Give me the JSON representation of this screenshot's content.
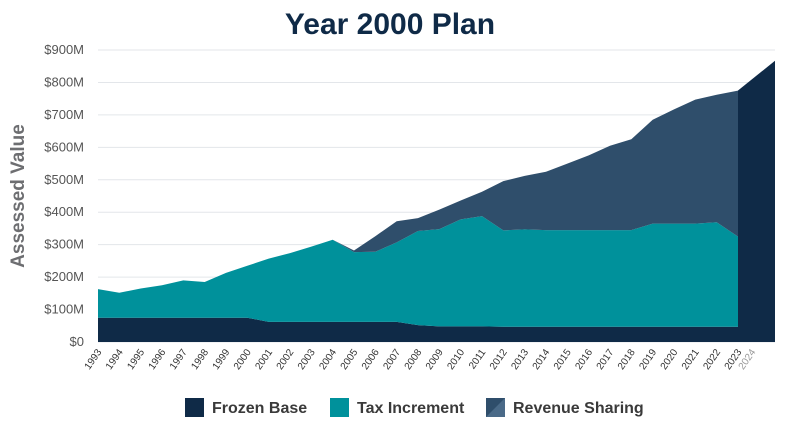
{
  "chart_data": {
    "type": "area",
    "title": "Year 2000 Plan",
    "ylabel": "Assessed Value",
    "ylim": [
      0,
      900
    ],
    "y_ticks": [
      {
        "value": 0,
        "label": "$0"
      },
      {
        "value": 100,
        "label": "$100M"
      },
      {
        "value": 200,
        "label": "$200M"
      },
      {
        "value": 300,
        "label": "$300M"
      },
      {
        "value": 400,
        "label": "$400M"
      },
      {
        "value": 500,
        "label": "$500M"
      },
      {
        "value": 600,
        "label": "$600M"
      },
      {
        "value": 700,
        "label": "$700M"
      },
      {
        "value": 800,
        "label": "$800M"
      },
      {
        "value": 900,
        "label": "$900M"
      }
    ],
    "categories": [
      "1993",
      "1994",
      "1995",
      "1996",
      "1997",
      "1998",
      "1999",
      "2000",
      "2001",
      "2002",
      "2003",
      "2004",
      "2005",
      "2006",
      "2007",
      "2008",
      "2009",
      "2010",
      "2011",
      "2012",
      "2013",
      "2014",
      "2015",
      "2016",
      "2017",
      "2018",
      "2019",
      "2020",
      "2021",
      "2022",
      "2023",
      "2024"
    ],
    "grid": true,
    "legend_position": "bottom",
    "series": [
      {
        "name": "Frozen Base",
        "color": "#0f2a47",
        "values": [
          75,
          75,
          75,
          75,
          75,
          75,
          75,
          75,
          62,
          62,
          62,
          62,
          62,
          62,
          62,
          52,
          48,
          48,
          48,
          47,
          47,
          47,
          47,
          47,
          47,
          47,
          47,
          47,
          47,
          47,
          47,
          867
        ]
      },
      {
        "name": "Tax Increment",
        "color": "#00919b",
        "values": [
          88,
          77,
          90,
          100,
          115,
          110,
          138,
          160,
          195,
          212,
          232,
          253,
          215,
          216,
          245,
          290,
          300,
          330,
          340,
          297,
          300,
          298,
          298,
          298,
          298,
          298,
          318,
          318,
          318,
          322,
          278,
          0
        ]
      },
      {
        "name": "Revenue Sharing",
        "color": "#2f4e6b",
        "values": [
          0,
          0,
          0,
          0,
          0,
          0,
          0,
          0,
          0,
          0,
          0,
          0,
          5,
          48,
          65,
          40,
          60,
          58,
          75,
          152,
          165,
          180,
          205,
          230,
          260,
          280,
          320,
          352,
          382,
          393,
          450,
          0
        ]
      }
    ]
  }
}
